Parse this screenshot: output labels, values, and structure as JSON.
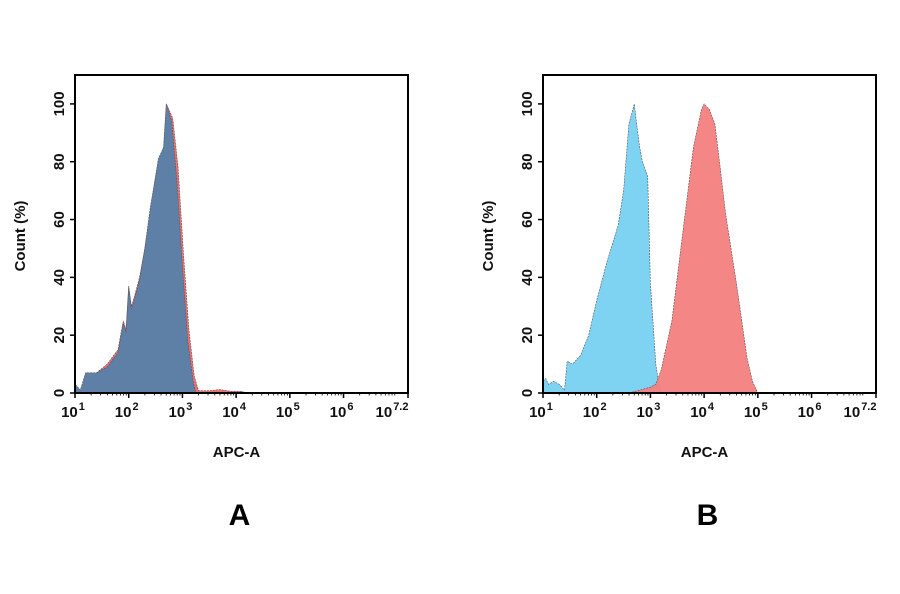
{
  "chart_data": [
    {
      "type": "area",
      "panel_label": "A",
      "xlabel": "APC-A",
      "ylabel": "Count  (%)",
      "xscale": "log10",
      "xlim_exponent": [
        1,
        7.2
      ],
      "x_tick_labels": [
        {
          "base": "10",
          "exp": "1"
        },
        {
          "base": "10",
          "exp": "2"
        },
        {
          "base": "10",
          "exp": "3"
        },
        {
          "base": "10",
          "exp": "4"
        },
        {
          "base": "10",
          "exp": "5"
        },
        {
          "base": "10",
          "exp": "6"
        },
        {
          "base": "10",
          "exp": "7.2"
        }
      ],
      "ylim": [
        0,
        110
      ],
      "y_ticks": [
        "0",
        "20",
        "40",
        "60",
        "80",
        "100"
      ],
      "grid": false,
      "series": [
        {
          "color": "#f07070",
          "log10_x": [
            1.0,
            1.1,
            1.2,
            1.4,
            1.6,
            1.8,
            1.9,
            1.95,
            2.0,
            2.05,
            2.1,
            2.2,
            2.3,
            2.4,
            2.5,
            2.55,
            2.65,
            2.7,
            2.75,
            2.82,
            2.92,
            3.02,
            3.12,
            3.22,
            3.3,
            3.5,
            3.7,
            3.9,
            4.1,
            4.2
          ],
          "y": [
            3,
            1,
            7,
            7,
            10,
            15,
            25,
            22,
            37,
            30,
            33,
            40,
            50,
            63,
            75,
            80,
            85,
            100,
            98,
            95,
            78,
            48,
            22,
            6,
            0.8,
            0.8,
            1.2,
            0.6,
            0.6,
            0
          ]
        },
        {
          "color": "#5e7fa6",
          "log10_x": [
            1.0,
            1.1,
            1.2,
            1.4,
            1.6,
            1.8,
            1.9,
            1.95,
            2.0,
            2.05,
            2.1,
            2.2,
            2.3,
            2.4,
            2.5,
            2.55,
            2.65,
            2.7,
            2.75,
            2.8,
            2.9,
            3.0,
            3.1,
            3.2,
            3.25
          ],
          "y": [
            3,
            1,
            7,
            7,
            9,
            14,
            24,
            21,
            37,
            29,
            32,
            39,
            50,
            64,
            75,
            81,
            85,
            100,
            97,
            94,
            73,
            44,
            18,
            4,
            0
          ]
        }
      ]
    },
    {
      "type": "area",
      "panel_label": "B",
      "xlabel": "APC-A",
      "ylabel": "Count  (%)",
      "xscale": "log10",
      "xlim_exponent": [
        1,
        7.2
      ],
      "x_tick_labels": [
        {
          "base": "10",
          "exp": "1"
        },
        {
          "base": "10",
          "exp": "2"
        },
        {
          "base": "10",
          "exp": "3"
        },
        {
          "base": "10",
          "exp": "4"
        },
        {
          "base": "10",
          "exp": "5"
        },
        {
          "base": "10",
          "exp": "6"
        },
        {
          "base": "10",
          "exp": "7.2"
        }
      ],
      "ylim": [
        0,
        110
      ],
      "y_ticks": [
        "0",
        "20",
        "40",
        "60",
        "80",
        "100"
      ],
      "grid": false,
      "series": [
        {
          "color": "#7fd3f2",
          "log10_x": [
            1.0,
            1.05,
            1.1,
            1.2,
            1.3,
            1.4,
            1.45,
            1.55,
            1.7,
            1.85,
            2.0,
            2.2,
            2.4,
            2.5,
            2.6,
            2.7,
            2.75,
            2.8,
            2.85,
            2.95,
            3.0,
            3.1,
            3.15,
            3.2
          ],
          "y": [
            4,
            5,
            3,
            4,
            3,
            1,
            11,
            10,
            13,
            20,
            32,
            46,
            58,
            70,
            93,
            100,
            92,
            85,
            80,
            75,
            38,
            10,
            4,
            0
          ]
        },
        {
          "color": "#f47f80",
          "log10_x": [
            2.6,
            2.8,
            3.0,
            3.1,
            3.2,
            3.4,
            3.6,
            3.8,
            3.95,
            4.0,
            4.1,
            4.2,
            4.3,
            4.4,
            4.6,
            4.8,
            4.9,
            5.0
          ],
          "y": [
            0,
            1,
            2,
            3,
            8,
            25,
            55,
            85,
            98,
            100,
            98,
            93,
            78,
            62,
            38,
            12,
            4,
            0
          ]
        }
      ]
    }
  ]
}
